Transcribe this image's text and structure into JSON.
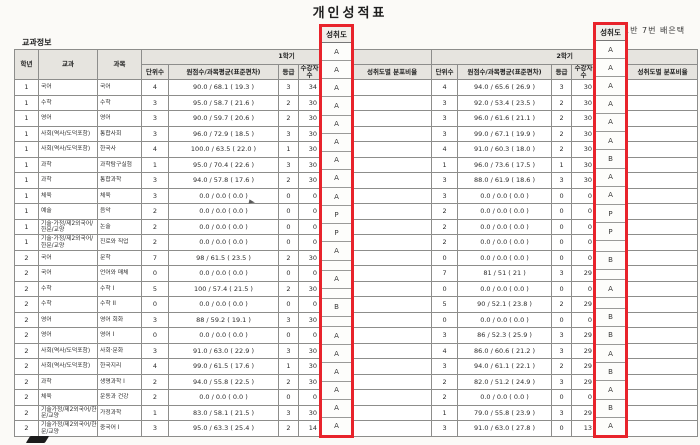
{
  "title": "개인성적표",
  "section_label": "교과정보",
  "student_info": "1반 7번 배은택",
  "highlight_color": "#e8232b",
  "table": {
    "headers": {
      "grade": "학년",
      "subject_area": "교과",
      "subject": "과목",
      "sem1": "1학기",
      "sem2": "2학기",
      "units": "단위수",
      "score": "원점수/과목평균(표준편차)",
      "rank": "등급",
      "students": "수강자수",
      "achievement": "성취도",
      "distribution": "성취도별 분포비율"
    },
    "rows": [
      {
        "grade": "1",
        "area": "국어",
        "subject": "국어",
        "s1": {
          "units": "4",
          "score": "90.0 / 68.1 ( 19.3 )",
          "rank": "3",
          "students": "34",
          "ach": "A",
          "dist": ""
        },
        "s2": {
          "units": "4",
          "score": "94.0 / 65.6 ( 26.9 )",
          "rank": "3",
          "students": "30",
          "ach": "A",
          "dist": ""
        }
      },
      {
        "grade": "1",
        "area": "수학",
        "subject": "수학",
        "s1": {
          "units": "3",
          "score": "95.0 / 58.7 ( 21.6 )",
          "rank": "2",
          "students": "30",
          "ach": "A",
          "dist": ""
        },
        "s2": {
          "units": "3",
          "score": "92.0 / 53.4 ( 23.5 )",
          "rank": "2",
          "students": "30",
          "ach": "A",
          "dist": ""
        }
      },
      {
        "grade": "1",
        "area": "영어",
        "subject": "영어",
        "s1": {
          "units": "3",
          "score": "90.0 / 59.7 ( 20.6 )",
          "rank": "2",
          "students": "30",
          "ach": "A",
          "dist": ""
        },
        "s2": {
          "units": "3",
          "score": "96.0 / 61.6 ( 21.1 )",
          "rank": "2",
          "students": "30",
          "ach": "A",
          "dist": ""
        }
      },
      {
        "grade": "1",
        "area": "사회(역사/도덕포함)",
        "subject": "통합사회",
        "s1": {
          "units": "3",
          "score": "96.0 / 72.9 ( 18.5 )",
          "rank": "3",
          "students": "30",
          "ach": "A",
          "dist": ""
        },
        "s2": {
          "units": "3",
          "score": "99.0 / 67.1 ( 19.9 )",
          "rank": "2",
          "students": "30",
          "ach": "A",
          "dist": ""
        }
      },
      {
        "grade": "1",
        "area": "사회(역사/도덕포함)",
        "subject": "한국사",
        "s1": {
          "units": "4",
          "score": "100.0 / 63.5 ( 22.0 )",
          "rank": "1",
          "students": "30",
          "ach": "A",
          "dist": ""
        },
        "s2": {
          "units": "4",
          "score": "91.0 / 60.3 ( 18.0 )",
          "rank": "2",
          "students": "30",
          "ach": "A",
          "dist": ""
        }
      },
      {
        "grade": "1",
        "area": "과학",
        "subject": "과학탐구실험",
        "s1": {
          "units": "1",
          "score": "95.0 / 70.4 ( 22.6 )",
          "rank": "3",
          "students": "30",
          "ach": "A",
          "dist": ""
        },
        "s2": {
          "units": "1",
          "score": "96.0 / 73.6 ( 17.5 )",
          "rank": "1",
          "students": "30",
          "ach": "A",
          "dist": ""
        }
      },
      {
        "grade": "1",
        "area": "과학",
        "subject": "통합과학",
        "s1": {
          "units": "3",
          "score": "94.0 / 57.8 ( 17.6 )",
          "rank": "2",
          "students": "30",
          "ach": "A",
          "dist": ""
        },
        "s2": {
          "units": "3",
          "score": "88.0 / 61.9 ( 18.6 )",
          "rank": "3",
          "students": "30",
          "ach": "B",
          "dist": ""
        }
      },
      {
        "grade": "1",
        "area": "체육",
        "subject": "체육",
        "s1": {
          "units": "3",
          "score": "0.0 / 0.0 ( 0.0 )",
          "rank": "0",
          "students": "0",
          "ach": "A",
          "dist": ""
        },
        "s2": {
          "units": "3",
          "score": "0.0 / 0.0 ( 0.0 )",
          "rank": "0",
          "students": "0",
          "ach": "A",
          "dist": ""
        }
      },
      {
        "grade": "1",
        "area": "예술",
        "subject": "음악",
        "s1": {
          "units": "2",
          "score": "0.0 / 0.0 ( 0.0 )",
          "rank": "0",
          "students": "0",
          "ach": "A",
          "dist": ""
        },
        "s2": {
          "units": "2",
          "score": "0.0 / 0.0 ( 0.0 )",
          "rank": "0",
          "students": "0",
          "ach": "A",
          "dist": ""
        }
      },
      {
        "grade": "1",
        "area": "기술·가정/제2외국어/한문/교양",
        "subject": "논술",
        "s1": {
          "units": "2",
          "score": "0.0 / 0.0 ( 0.0 )",
          "rank": "0",
          "students": "0",
          "ach": "P",
          "dist": ""
        },
        "s2": {
          "units": "2",
          "score": "0.0 / 0.0 ( 0.0 )",
          "rank": "0",
          "students": "0",
          "ach": "P",
          "dist": ""
        }
      },
      {
        "grade": "1",
        "area": "기술·가정/제2외국어/한문/교양",
        "subject": "진로와 직업",
        "s1": {
          "units": "2",
          "score": "0.0 / 0.0 ( 0.0 )",
          "rank": "0",
          "students": "0",
          "ach": "P",
          "dist": ""
        },
        "s2": {
          "units": "2",
          "score": "0.0 / 0.0 ( 0.0 )",
          "rank": "0",
          "students": "0",
          "ach": "P",
          "dist": ""
        }
      },
      {
        "grade": "2",
        "area": "국어",
        "subject": "문학",
        "s1": {
          "units": "7",
          "score": "98 / 61.5 ( 23.5 )",
          "rank": "2",
          "students": "30",
          "ach": "A",
          "dist": ""
        },
        "s2": {
          "units": "0",
          "score": "0.0 / 0.0 ( 0.0 )",
          "rank": "0",
          "students": "0",
          "ach": "",
          "dist": ""
        }
      },
      {
        "grade": "2",
        "area": "국어",
        "subject": "언어와 매체",
        "s1": {
          "units": "0",
          "score": "0.0 / 0.0 ( 0.0 )",
          "rank": "0",
          "students": "0",
          "ach": "",
          "dist": ""
        },
        "s2": {
          "units": "7",
          "score": "81 / 51 ( 21 )",
          "rank": "3",
          "students": "29",
          "ach": "B",
          "dist": ""
        }
      },
      {
        "grade": "2",
        "area": "수학",
        "subject": "수학 I",
        "s1": {
          "units": "5",
          "score": "100 / 57.4 ( 21.5 )",
          "rank": "2",
          "students": "30",
          "ach": "A",
          "dist": ""
        },
        "s2": {
          "units": "0",
          "score": "0.0 / 0.0 ( 0.0 )",
          "rank": "0",
          "students": "0",
          "ach": "",
          "dist": ""
        }
      },
      {
        "grade": "2",
        "area": "수학",
        "subject": "수학 II",
        "s1": {
          "units": "0",
          "score": "0.0 / 0.0 ( 0.0 )",
          "rank": "0",
          "students": "0",
          "ach": "",
          "dist": ""
        },
        "s2": {
          "units": "5",
          "score": "90 / 52.1 ( 23.8 )",
          "rank": "2",
          "students": "29",
          "ach": "A",
          "dist": ""
        }
      },
      {
        "grade": "2",
        "area": "영어",
        "subject": "영어 회화",
        "s1": {
          "units": "3",
          "score": "88 / 59.2 ( 19.1 )",
          "rank": "3",
          "students": "30",
          "ach": "B",
          "dist": ""
        },
        "s2": {
          "units": "0",
          "score": "0.0 / 0.0 ( 0.0 )",
          "rank": "0",
          "students": "0",
          "ach": "",
          "dist": ""
        }
      },
      {
        "grade": "2",
        "area": "영어",
        "subject": "영어 I",
        "s1": {
          "units": "0",
          "score": "0.0 / 0.0 ( 0.0 )",
          "rank": "0",
          "students": "0",
          "ach": "",
          "dist": ""
        },
        "s2": {
          "units": "3",
          "score": "86 / 52.3 ( 25.9 )",
          "rank": "3",
          "students": "29",
          "ach": "B",
          "dist": ""
        }
      },
      {
        "grade": "2",
        "area": "사회(역사/도덕포함)",
        "subject": "사회·문화",
        "s1": {
          "units": "3",
          "score": "91.0 / 63.0 ( 22.9 )",
          "rank": "3",
          "students": "30",
          "ach": "A",
          "dist": ""
        },
        "s2": {
          "units": "4",
          "score": "86.0 / 60.6 ( 21.2 )",
          "rank": "3",
          "students": "29",
          "ach": "B",
          "dist": ""
        }
      },
      {
        "grade": "2",
        "area": "사회(역사/도덕포함)",
        "subject": "한국지리",
        "s1": {
          "units": "4",
          "score": "99.0 / 61.5 ( 17.6 )",
          "rank": "1",
          "students": "30",
          "ach": "A",
          "dist": ""
        },
        "s2": {
          "units": "3",
          "score": "94.0 / 61.1 ( 22.1 )",
          "rank": "2",
          "students": "29",
          "ach": "A",
          "dist": ""
        }
      },
      {
        "grade": "2",
        "area": "과학",
        "subject": "생명과학 I",
        "s1": {
          "units": "2",
          "score": "94.0 / 55.8 ( 22.5 )",
          "rank": "2",
          "students": "30",
          "ach": "A",
          "dist": ""
        },
        "s2": {
          "units": "2",
          "score": "82.0 / 51.2 ( 24.9 )",
          "rank": "3",
          "students": "29",
          "ach": "B",
          "dist": ""
        }
      },
      {
        "grade": "2",
        "area": "체육",
        "subject": "운동과 건강",
        "s1": {
          "units": "2",
          "score": "0.0 / 0.0 ( 0.0 )",
          "rank": "0",
          "students": "0",
          "ach": "A",
          "dist": ""
        },
        "s2": {
          "units": "2",
          "score": "0.0 / 0.0 ( 0.0 )",
          "rank": "0",
          "students": "0",
          "ach": "A",
          "dist": ""
        }
      },
      {
        "grade": "2",
        "area": "기술가정/제2외국어/한문/교양",
        "subject": "가정과학",
        "s1": {
          "units": "1",
          "score": "83.0 / 58.1 ( 21.5 )",
          "rank": "3",
          "students": "30",
          "ach": "A",
          "dist": ""
        },
        "s2": {
          "units": "1",
          "score": "79.0 / 55.8 ( 23.9 )",
          "rank": "3",
          "students": "29",
          "ach": "B",
          "dist": ""
        }
      },
      {
        "grade": "2",
        "area": "기술가정/제2외국어/한문/교양",
        "subject": "중국어 I",
        "s1": {
          "units": "3",
          "score": "95.0 / 63.3 ( 25.4 )",
          "rank": "2",
          "students": "14",
          "ach": "A",
          "dist": ""
        },
        "s2": {
          "units": "3",
          "score": "91.0 / 63.0 ( 27.8 )",
          "rank": "0",
          "students": "13",
          "ach": "A",
          "dist": ""
        }
      }
    ]
  }
}
